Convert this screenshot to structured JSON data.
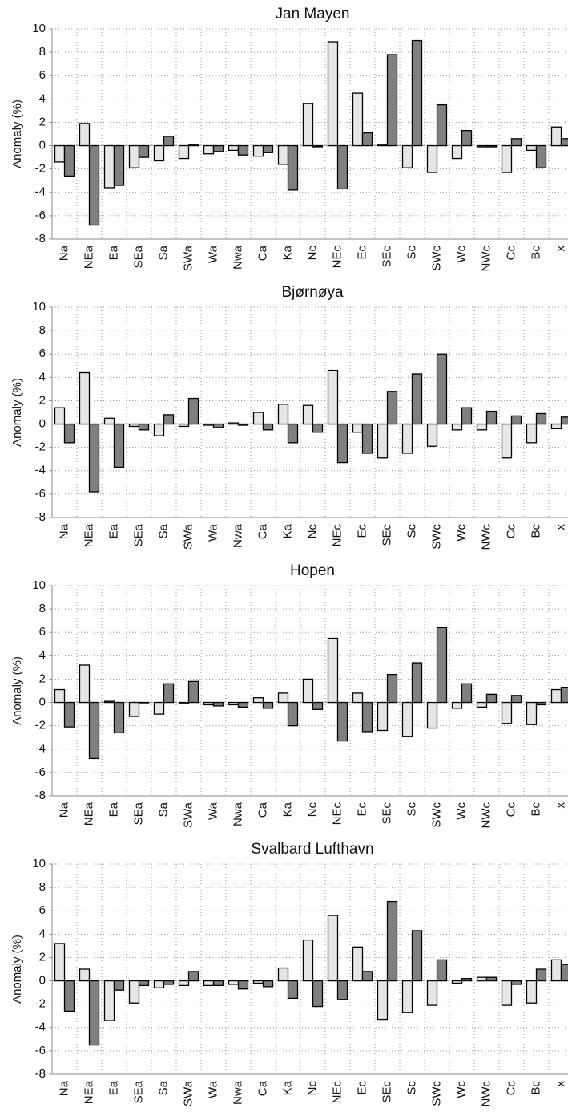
{
  "chart_data": [
    {
      "type": "bar",
      "title": "Jan Mayen",
      "y_label": "Anomaly (%)",
      "categories": [
        "Na",
        "NEa",
        "Ea",
        "SEa",
        "Sa",
        "SWa",
        "Wa",
        "Nwa",
        "Ca",
        "Ka",
        "Nc",
        "NEc",
        "Ec",
        "SEc",
        "Sc",
        "SWc",
        "Wc",
        "NWc",
        "Cc",
        "Bc",
        "x"
      ],
      "series": [
        {
          "color": "#e6e6e6",
          "values": [
            -1.4,
            1.9,
            -3.6,
            -1.9,
            -1.3,
            -1.1,
            -0.7,
            -0.4,
            -0.9,
            -1.6,
            3.6,
            8.9,
            4.5,
            0.1,
            -1.9,
            -2.3,
            -1.1,
            -0.1,
            -2.3,
            -0.4,
            1.6
          ]
        },
        {
          "color": "#808080",
          "values": [
            -2.6,
            -6.8,
            -3.4,
            -1.0,
            0.8,
            0.1,
            -0.5,
            -0.8,
            -0.6,
            -3.8,
            -0.1,
            -3.7,
            1.1,
            7.8,
            9.0,
            3.5,
            1.3,
            -0.1,
            0.6,
            -1.9,
            0.6
          ]
        }
      ],
      "ylim": [
        -8,
        10
      ],
      "yticks": [
        -8,
        -6,
        -4,
        -2,
        0,
        2,
        4,
        6,
        8,
        10
      ],
      "grid": true
    },
    {
      "type": "bar",
      "title": "Bjørnøya",
      "y_label": "Anomaly (%)",
      "categories": [
        "Na",
        "NEa",
        "Ea",
        "SEa",
        "Sa",
        "SWa",
        "Wa",
        "Nwa",
        "Ca",
        "Ka",
        "Nc",
        "NEc",
        "Ec",
        "SEc",
        "Sc",
        "SWc",
        "Wc",
        "NWc",
        "Cc",
        "Bc",
        "x"
      ],
      "series": [
        {
          "color": "#e6e6e6",
          "values": [
            1.4,
            4.4,
            0.5,
            -0.2,
            -1.0,
            -0.2,
            -0.1,
            0.1,
            1.0,
            1.7,
            1.6,
            4.6,
            -0.7,
            -2.9,
            -2.5,
            -1.9,
            -0.5,
            -0.5,
            -2.9,
            -1.6,
            -0.4
          ]
        },
        {
          "color": "#808080",
          "values": [
            -1.6,
            -5.8,
            -3.7,
            -0.5,
            0.8,
            2.2,
            -0.3,
            -0.1,
            -0.5,
            -1.6,
            -0.7,
            -3.3,
            -2.5,
            2.8,
            4.3,
            6.0,
            1.4,
            1.1,
            0.7,
            0.9,
            0.6
          ]
        }
      ],
      "ylim": [
        -8,
        10
      ],
      "yticks": [
        -8,
        -6,
        -4,
        -2,
        0,
        2,
        4,
        6,
        8,
        10
      ],
      "grid": true
    },
    {
      "type": "bar",
      "title": "Hopen",
      "y_label": "Anomaly (%)",
      "categories": [
        "Na",
        "NEa",
        "Ea",
        "SEa",
        "Sa",
        "SWa",
        "Wa",
        "Nwa",
        "Ca",
        "Ka",
        "Nc",
        "NEc",
        "Ec",
        "SEc",
        "Sc",
        "SWc",
        "Wc",
        "NWc",
        "Cc",
        "Bc",
        "x"
      ],
      "series": [
        {
          "color": "#e6e6e6",
          "values": [
            1.1,
            3.2,
            0.1,
            -1.2,
            -1.0,
            -0.1,
            -0.2,
            -0.2,
            0.4,
            0.8,
            2.0,
            5.5,
            0.8,
            -2.4,
            -2.9,
            -2.2,
            -0.5,
            -0.4,
            -1.8,
            -1.9,
            1.1
          ]
        },
        {
          "color": "#808080",
          "values": [
            -2.1,
            -4.8,
            -2.6,
            0.0,
            1.6,
            1.8,
            -0.3,
            -0.4,
            -0.5,
            -2.0,
            -0.6,
            -3.3,
            -2.5,
            2.4,
            3.4,
            6.4,
            1.6,
            0.7,
            0.6,
            -0.2,
            1.3
          ]
        }
      ],
      "ylim": [
        -8,
        10
      ],
      "yticks": [
        -8,
        -6,
        -4,
        -2,
        0,
        2,
        4,
        6,
        8,
        10
      ],
      "grid": true
    },
    {
      "type": "bar",
      "title": "Svalbard Lufthavn",
      "y_label": "Anomaly (%)",
      "categories": [
        "Na",
        "NEa",
        "Ea",
        "SEa",
        "Sa",
        "SWa",
        "Wa",
        "Nwa",
        "Ca",
        "Ka",
        "Nc",
        "NEc",
        "Ec",
        "SEc",
        "Sc",
        "SWc",
        "Wc",
        "NWc",
        "Cc",
        "Bc",
        "x"
      ],
      "series": [
        {
          "color": "#e6e6e6",
          "values": [
            3.2,
            1.0,
            -3.4,
            -1.9,
            -0.6,
            -0.4,
            -0.4,
            -0.3,
            -0.2,
            1.1,
            3.5,
            5.6,
            2.9,
            -3.3,
            -2.7,
            -2.1,
            -0.2,
            0.3,
            -2.1,
            -1.9,
            1.8
          ]
        },
        {
          "color": "#808080",
          "values": [
            -2.6,
            -5.5,
            -0.8,
            -0.4,
            -0.3,
            0.8,
            -0.4,
            -0.7,
            -0.5,
            -1.5,
            -2.2,
            -1.6,
            0.8,
            6.8,
            4.3,
            1.8,
            0.2,
            0.3,
            -0.3,
            1.0,
            1.4
          ]
        }
      ],
      "ylim": [
        -8,
        10
      ],
      "yticks": [
        -8,
        -6,
        -4,
        -2,
        0,
        2,
        4,
        6,
        8,
        10
      ],
      "grid": true
    }
  ]
}
